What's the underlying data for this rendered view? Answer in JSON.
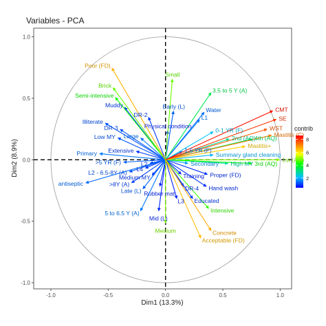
{
  "chart_data": {
    "type": "pca-variable-correlation-circle",
    "title": "Variables - PCA",
    "xlabel": "Dim1 (13.3%)",
    "ylabel": "Dim2 (8.9%)",
    "xlim": [
      -1.15,
      1.1
    ],
    "ylim": [
      -1.05,
      1.07
    ],
    "x_ticks": [
      -1.0,
      -0.5,
      0.0,
      0.5,
      1.0
    ],
    "y_ticks": [
      -1.0,
      -0.5,
      0.0,
      0.5,
      1.0
    ],
    "x_tick_labels": [
      "-1.0",
      "-0.5",
      "0.0",
      "0.5",
      "1.0"
    ],
    "y_tick_labels": [
      "-1.0",
      "-0.5",
      "0.0",
      "0.5",
      "1.0"
    ],
    "reference_lines": "dashed at x=0 and y=0",
    "unit_circle": true,
    "grid": false,
    "legend": {
      "title": "contrib",
      "placement": "right",
      "ticks": [
        2,
        4,
        6,
        8
      ],
      "tick_labels": [
        "2",
        "4",
        "6",
        "8"
      ],
      "range": [
        0.5,
        8.6
      ],
      "gradient_colors": [
        "#0000ff",
        "#00c0ff",
        "#00ff00",
        "#ffff00",
        "#ff8000",
        "#ff0000"
      ]
    },
    "variables": [
      {
        "name": "CMT",
        "x": 0.94,
        "y": 0.4,
        "contrib": 8.4
      },
      {
        "name": "SE",
        "x": 0.97,
        "y": 0.33,
        "contrib": 8.0
      },
      {
        "name": "WST",
        "x": 0.89,
        "y": 0.25,
        "contrib": 7.6
      },
      {
        "name": "Mastitis (C)",
        "x": 0.93,
        "y": 0.2,
        "contrib": 7.2
      },
      {
        "name": "Mastitis+",
        "x": 0.7,
        "y": 0.11,
        "contrib": 6.3
      },
      {
        "name": "1st (AQ)",
        "x": 1.0,
        "y": 0.0,
        "contrib": 5.0
      },
      {
        "name": "3rd (AQ)",
        "x": 0.76,
        "y": -0.03,
        "contrib": 4.2
      },
      {
        "name": "High MY",
        "x": 0.55,
        "y": -0.03,
        "contrib": 2.8
      },
      {
        "name": "2nd (AQ)",
        "x": 0.56,
        "y": 0.17,
        "contrib": 3.0
      },
      {
        "name": "4th (AQ)",
        "x": 0.76,
        "y": 0.17,
        "contrib": 3.4
      },
      {
        "name": "Summary gland cleaning",
        "x": 0.42,
        "y": 0.04,
        "contrib": 2.0
      },
      {
        "name": "Secondary",
        "x": 0.2,
        "y": -0.03,
        "contrib": 1.8
      },
      {
        "name": "1.5 YR (F)",
        "x": 0.15,
        "y": 0.07,
        "contrib": 1.5
      },
      {
        "name": "0-1 YR (F)",
        "x": 0.42,
        "y": 0.23,
        "contrib": 2.2
      },
      {
        "name": "L1",
        "x": 0.3,
        "y": 0.33,
        "contrib": 1.5
      },
      {
        "name": "Water",
        "x": 0.34,
        "y": 0.39,
        "contrib": 1.4
      },
      {
        "name": "3.5 to 5 Y (A)",
        "x": 0.4,
        "y": 0.55,
        "contrib": 3.5
      },
      {
        "name": "Small",
        "x": 0.06,
        "y": 0.66,
        "contrib": 4.8
      },
      {
        "name": "Early (L)",
        "x": 0.07,
        "y": 0.4,
        "contrib": 1.3
      },
      {
        "name": "Physical condition",
        "x": 0.02,
        "y": 0.24,
        "contrib": 0.8
      },
      {
        "name": "DR-2",
        "x": -0.15,
        "y": 0.35,
        "contrib": 1.0
      },
      {
        "name": "DR-3",
        "x": -0.4,
        "y": 0.25,
        "contrib": 1.2
      },
      {
        "name": "Illiterate",
        "x": -0.53,
        "y": 0.3,
        "contrib": 1.2
      },
      {
        "name": "Muddy",
        "x": -0.36,
        "y": 0.43,
        "contrib": 1.0
      },
      {
        "name": "Poor (FD)",
        "x": -0.47,
        "y": 0.75,
        "contrib": 6.6
      },
      {
        "name": "Brick",
        "x": -0.46,
        "y": 0.59,
        "contrib": 4.8
      },
      {
        "name": "Semi-intensive",
        "x": -0.44,
        "y": 0.51,
        "contrib": 4.2
      },
      {
        "name": "Low MY",
        "x": -0.42,
        "y": 0.18,
        "contrib": 1.2
      },
      {
        "name": "Large",
        "x": -0.22,
        "y": 0.18,
        "contrib": 1.5
      },
      {
        "name": "Extensive",
        "x": -0.26,
        "y": 0.07,
        "contrib": 1.0
      },
      {
        "name": "Primary",
        "x": -0.58,
        "y": 0.05,
        "contrib": 1.5
      },
      {
        "name": ">5 YR (F)",
        "x": -0.37,
        "y": -0.02,
        "contrib": 1.3
      },
      {
        "name": "L2",
        "x": -0.14,
        "y": -0.03,
        "contrib": 1.0
      },
      {
        "name": "L4",
        "x": -0.18,
        "y": -0.07,
        "contrib": 1.0
      },
      {
        "name": "L2 - 6.5-8Y (A)",
        "x": -0.32,
        "y": -0.1,
        "contrib": 1.2
      },
      {
        "name": "antiseptic",
        "x": -0.7,
        "y": -0.19,
        "contrib": 1.4
      },
      {
        "name": ">8Y (A)",
        "x": -0.3,
        "y": -0.19,
        "contrib": 1.0
      },
      {
        "name": "Medium MY",
        "x": -0.12,
        "y": -0.13,
        "contrib": 1.0
      },
      {
        "name": "Late (L)",
        "x": -0.2,
        "y": -0.24,
        "contrib": 1.3
      },
      {
        "name": "5 to 6.5 Y (A)",
        "x": -0.22,
        "y": -0.42,
        "contrib": 1.5
      },
      {
        "name": "Mid (L)",
        "x": -0.06,
        "y": -0.42,
        "contrib": 0.8
      },
      {
        "name": "Training",
        "x": 0.14,
        "y": -0.12,
        "contrib": 0.8
      },
      {
        "name": "Proper (FD)",
        "x": 0.37,
        "y": -0.12,
        "contrib": 0.9
      },
      {
        "name": "Rubber mat",
        "x": -0.05,
        "y": -0.22,
        "contrib": 0.8
      },
      {
        "name": "DR-4",
        "x": 0.16,
        "y": -0.22,
        "contrib": 0.9
      },
      {
        "name": "Hand wash",
        "x": 0.36,
        "y": -0.22,
        "contrib": 0.9
      },
      {
        "name": "L3",
        "x": 0.1,
        "y": -0.32,
        "contrib": 0.8
      },
      {
        "name": "Educated",
        "x": 0.24,
        "y": -0.32,
        "contrib": 1.0
      },
      {
        "name": "Intensive",
        "x": 0.38,
        "y": -0.4,
        "contrib": 4.5
      },
      {
        "name": "Medium",
        "x": 0.0,
        "y": -0.52,
        "contrib": 5.0
      },
      {
        "name": "Concrete",
        "x": 0.4,
        "y": -0.58,
        "contrib": 6.7
      },
      {
        "name": "Acceptable (FD)",
        "x": 0.31,
        "y": -0.64,
        "contrib": 6.5
      }
    ]
  }
}
